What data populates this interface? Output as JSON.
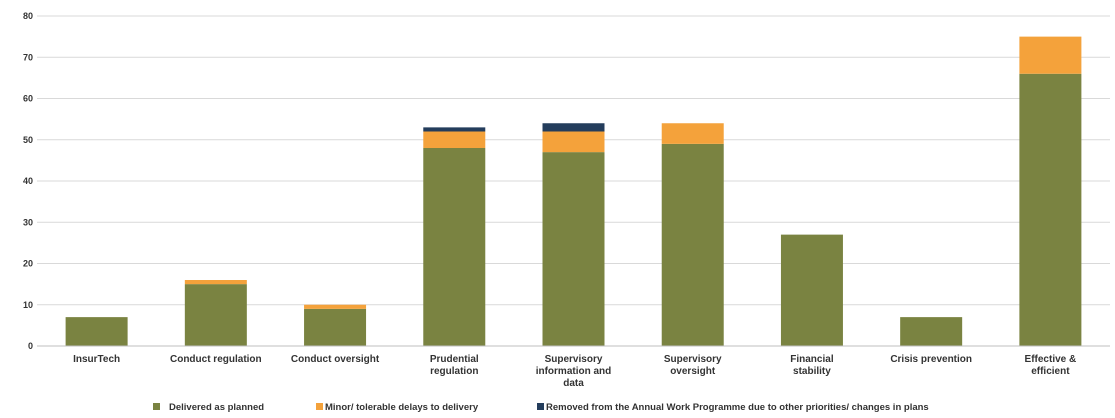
{
  "chart_data": {
    "type": "bar",
    "stacked": true,
    "title": "",
    "xlabel": "",
    "ylabel": "",
    "ylim": [
      0,
      80
    ],
    "yticks": [
      0,
      10,
      20,
      30,
      40,
      50,
      60,
      70,
      80
    ],
    "grid": true,
    "legend_position": "bottom",
    "categories": [
      [
        "InsurTech"
      ],
      [
        "Conduct regulation"
      ],
      [
        "Conduct oversight"
      ],
      [
        "Prudential",
        "regulation"
      ],
      [
        "Supervisory",
        "information and",
        "data"
      ],
      [
        "Supervisory",
        "oversight"
      ],
      [
        "Financial",
        "stability"
      ],
      [
        "Crisis prevention"
      ],
      [
        "Effective &",
        "efficient"
      ]
    ],
    "series": [
      {
        "name": "Delivered as planned",
        "color": "#7a8341",
        "values": [
          7,
          15,
          9,
          48,
          47,
          49,
          27,
          7,
          66
        ]
      },
      {
        "name": "Minor/ tolerable delays to delivery",
        "color": "#f4a23b",
        "values": [
          0,
          1,
          1,
          4,
          5,
          5,
          0,
          0,
          9
        ]
      },
      {
        "name": "Removed from the Annual Work Programme due to other priorities/ changes in plans",
        "color": "#243d5c",
        "values": [
          0,
          0,
          0,
          1,
          2,
          0,
          0,
          0,
          0
        ]
      }
    ]
  }
}
